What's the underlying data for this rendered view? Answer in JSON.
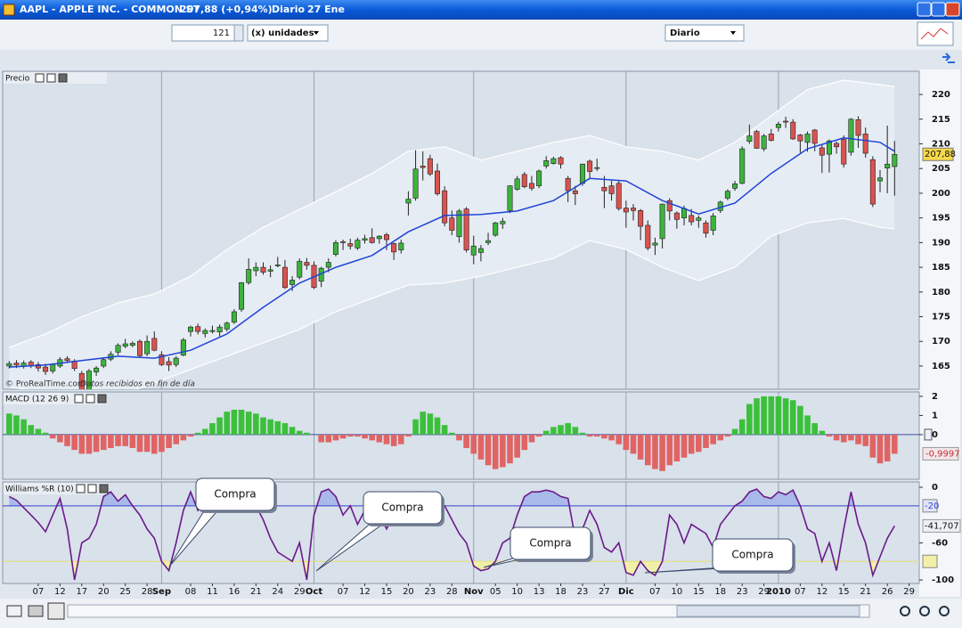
{
  "window": {
    "title": "AAPL - APPLE INC. - COMMON ST",
    "quote": "207,88 (+0,94%)",
    "period": "Diario",
    "date": "27 Ene"
  },
  "toolbar": {
    "units_value": "121",
    "units_mode": "(x) unidades",
    "timeframe": "Diario"
  },
  "chart_data": [
    {
      "type": "candlestick",
      "title": "Precio",
      "watermark": "© ProRealTime.com",
      "note": "Datos recibidos en fin de día",
      "xlim": [
        -0.9,
        125.4
      ],
      "ylim": [
        160.3,
        224.7
      ],
      "yticks": [
        165,
        170,
        175,
        180,
        185,
        190,
        195,
        200,
        205,
        210,
        215,
        220
      ],
      "up_color": "#3cb43c",
      "down_color": "#d9534f",
      "open": [
        165.0,
        165.6,
        165.0,
        165.8,
        165.3,
        164.8,
        164.0,
        165.0,
        166.5,
        166.0,
        163.5,
        159.9,
        163.8,
        165.0,
        166.4,
        167.8,
        169.0,
        169.2,
        170.0,
        167.5,
        170.6,
        167.3,
        165.9,
        165.3,
        167.2,
        172.0,
        173.0,
        171.6,
        172.0,
        171.9,
        172.5,
        173.9,
        176.5,
        181.9,
        184.3,
        185.0,
        184.2,
        185.4,
        185.0,
        181.5,
        183.0,
        186.0,
        185.4,
        182.2,
        185.0,
        187.6,
        190.2,
        189.8,
        188.9,
        190.5,
        191.0,
        190.8,
        191.6,
        189.8,
        188.5,
        198.0,
        199.0,
        205.5,
        207.0,
        204.5,
        200.5,
        195.0,
        191.2,
        196.8,
        187.5,
        188.0,
        190.0,
        191.5,
        193.8,
        196.5,
        200.8,
        203.8,
        202.0,
        201.5,
        205.5,
        206.0,
        207.2,
        203.0,
        200.5,
        202.0,
        206.5,
        205.0,
        201.2,
        201.5,
        202.0,
        197.0,
        197.0,
        196.5,
        193.5,
        189.5,
        190.8,
        198.5,
        196.0,
        195.0,
        195.5,
        194.5,
        194.0,
        192.5,
        196.5,
        199.0,
        201.0,
        202.0,
        210.5,
        212.5,
        209.0,
        212.0,
        213.3,
        214.6,
        214.4,
        211.8,
        210.3,
        212.8,
        209.2,
        207.9,
        210.1,
        210.9,
        208.3,
        214.9,
        212.0,
        206.8,
        202.5,
        205.1,
        205.4
      ],
      "high": [
        166.0,
        166.2,
        166.1,
        166.2,
        165.8,
        165.5,
        165.6,
        166.8,
        167.0,
        166.4,
        164.0,
        164.4,
        165.0,
        166.8,
        168.0,
        169.6,
        170.5,
        170.0,
        170.4,
        171.2,
        172.0,
        168.0,
        166.8,
        167.0,
        170.7,
        173.2,
        173.6,
        172.6,
        173.2,
        173.4,
        174.0,
        176.5,
        182.0,
        186.8,
        186.0,
        186.0,
        185.4,
        187.1,
        186.5,
        183.2,
        186.8,
        186.9,
        186.2,
        185.1,
        186.8,
        190.5,
        190.6,
        190.8,
        191.0,
        191.6,
        192.9,
        191.5,
        192.0,
        190.0,
        190.6,
        200.4,
        208.7,
        208.5,
        207.8,
        206.0,
        201.4,
        196.5,
        196.8,
        197.2,
        191.4,
        189.5,
        192.0,
        194.2,
        195.0,
        201.6,
        203.5,
        204.3,
        203.5,
        204.8,
        207.5,
        207.4,
        207.5,
        203.5,
        201.5,
        206.0,
        206.8,
        207.0,
        203.5,
        202.5,
        202.5,
        198.5,
        197.8,
        196.8,
        194.5,
        191.0,
        197.9,
        199.0,
        196.3,
        197.5,
        196.8,
        195.5,
        194.5,
        196.0,
        198.5,
        200.8,
        202.5,
        209.5,
        213.9,
        212.8,
        212.0,
        213.0,
        214.5,
        215.5,
        215.0,
        212.0,
        212.5,
        213.0,
        210.0,
        210.9,
        210.5,
        211.7,
        215.2,
        215.6,
        213.3,
        207.5,
        204.7,
        213.7,
        210.6
      ],
      "low": [
        164.5,
        164.6,
        164.5,
        164.6,
        163.9,
        163.2,
        163.5,
        164.6,
        165.6,
        164.0,
        159.4,
        159.7,
        163.0,
        164.6,
        166.0,
        167.2,
        168.6,
        168.8,
        166.8,
        167.0,
        168.0,
        165.0,
        164.0,
        164.8,
        167.0,
        171.0,
        171.4,
        170.8,
        171.6,
        171.0,
        172.0,
        173.5,
        176.0,
        181.5,
        183.2,
        183.5,
        183.0,
        185.0,
        180.6,
        180.2,
        182.6,
        184.5,
        180.6,
        181.0,
        184.0,
        187.2,
        188.5,
        188.6,
        188.5,
        189.8,
        189.8,
        189.8,
        188.5,
        186.5,
        187.8,
        195.5,
        198.5,
        202.6,
        203.5,
        199.5,
        193.3,
        191.5,
        190.0,
        188.0,
        185.6,
        186.2,
        189.5,
        191.2,
        192.8,
        196.0,
        200.5,
        201.0,
        200.5,
        201.0,
        205.0,
        205.8,
        205.0,
        198.2,
        197.6,
        201.5,
        202.8,
        204.5,
        197.0,
        198.5,
        196.5,
        193.0,
        194.5,
        190.5,
        188.4,
        187.5,
        188.8,
        194.5,
        192.8,
        193.5,
        193.5,
        193.0,
        191.0,
        191.5,
        196.0,
        198.6,
        200.5,
        201.8,
        210.0,
        209.0,
        208.5,
        210.5,
        212.5,
        213.2,
        210.8,
        208.2,
        208.4,
        208.5,
        204.1,
        204.2,
        208.0,
        205.2,
        207.6,
        209.2,
        207.2,
        197.2,
        200.2,
        200.0,
        199.5
      ],
      "close": [
        165.5,
        165.2,
        165.6,
        165.1,
        164.6,
        163.9,
        165.3,
        166.3,
        166.1,
        164.5,
        159.6,
        164.0,
        164.6,
        166.3,
        167.4,
        169.2,
        169.5,
        169.6,
        167.1,
        170.0,
        168.2,
        165.3,
        165.2,
        166.6,
        170.3,
        172.9,
        172.0,
        172.2,
        172.2,
        172.9,
        173.7,
        176.0,
        181.9,
        184.6,
        185.0,
        184.0,
        184.5,
        185.5,
        180.9,
        182.4,
        186.2,
        185.4,
        180.9,
        184.8,
        186.0,
        190.0,
        190.0,
        189.3,
        190.5,
        190.8,
        190.0,
        191.3,
        190.6,
        188.1,
        189.9,
        198.8,
        204.9,
        205.2,
        203.9,
        199.9,
        194.0,
        192.5,
        196.4,
        188.5,
        189.3,
        188.8,
        190.4,
        194.0,
        194.3,
        201.5,
        202.9,
        201.3,
        201.0,
        204.5,
        206.6,
        207.0,
        205.9,
        200.5,
        199.9,
        205.9,
        204.4,
        205.2,
        200.5,
        199.9,
        196.9,
        196.2,
        196.5,
        193.3,
        188.9,
        189.9,
        197.8,
        196.4,
        194.7,
        196.9,
        194.2,
        195.0,
        191.9,
        195.4,
        198.2,
        200.4,
        201.9,
        209.0,
        211.6,
        209.1,
        211.6,
        210.7,
        214.0,
        214.4,
        211.0,
        210.6,
        212.0,
        210.1,
        207.7,
        210.6,
        209.4,
        205.9,
        215.0,
        211.7,
        208.1,
        197.8,
        203.1,
        205.9,
        207.88
      ],
      "last_price": {
        "value": 207.88,
        "label": "207,88"
      },
      "average": {
        "color": "#1f44d8",
        "x": [
          0,
          5,
          10,
          15,
          20,
          25,
          30,
          35,
          40,
          45,
          50,
          55,
          60,
          65,
          70,
          75,
          80,
          85,
          90,
          95,
          100,
          105,
          110,
          115,
          120,
          122
        ],
        "values": [
          164.8,
          165.2,
          166.1,
          167,
          166.6,
          168.2,
          171.5,
          176.9,
          181.8,
          185,
          187.4,
          192.2,
          195.5,
          195.7,
          196.4,
          198.5,
          203,
          202.5,
          198.5,
          195.8,
          198,
          204,
          209,
          211.2,
          210.3,
          208.5
        ]
      },
      "bands": {
        "color": "#ffffff",
        "fill": "#e6ecf3",
        "x": [
          0,
          5,
          10,
          15,
          20,
          25,
          30,
          35,
          40,
          45,
          50,
          55,
          60,
          65,
          70,
          75,
          80,
          85,
          90,
          95,
          100,
          105,
          110,
          115,
          120,
          122
        ],
        "upper": [
          168.8,
          171.5,
          175,
          177.8,
          179.6,
          183.2,
          188.6,
          193.1,
          196.7,
          200.3,
          204,
          208.5,
          209.4,
          206.7,
          208.5,
          210.3,
          211.7,
          209.4,
          208.5,
          206.7,
          210.3,
          215.7,
          221,
          222.9,
          222,
          221.6
        ],
        "lower": [
          160.7,
          159.8,
          158,
          158.9,
          161.6,
          164.3,
          167,
          169.7,
          172.4,
          176,
          178.7,
          181.4,
          181.8,
          183.2,
          185,
          186.8,
          190.4,
          188.6,
          185,
          182.3,
          185,
          191.3,
          194,
          194.9,
          193.1,
          192.8
        ]
      }
    },
    {
      "type": "bar",
      "title": "MACD (12 26 9)",
      "xlim": [
        -0.9,
        125.4
      ],
      "ylim": [
        -2.33,
        2.23
      ],
      "yticks": [
        0,
        1,
        2
      ],
      "positive_color": "#3cc03c",
      "negative_color": "#e06464",
      "values": [
        1.1,
        1.0,
        0.8,
        0.5,
        0.3,
        0.1,
        -0.2,
        -0.4,
        -0.6,
        -0.8,
        -1.0,
        -1.0,
        -0.9,
        -0.8,
        -0.7,
        -0.6,
        -0.6,
        -0.7,
        -0.9,
        -0.9,
        -1.0,
        -0.9,
        -0.7,
        -0.5,
        -0.3,
        -0.1,
        0.1,
        0.3,
        0.6,
        0.9,
        1.2,
        1.3,
        1.3,
        1.2,
        1.1,
        0.9,
        0.8,
        0.7,
        0.6,
        0.4,
        0.2,
        0.1,
        0.0,
        -0.4,
        -0.4,
        -0.3,
        -0.2,
        -0.1,
        -0.1,
        -0.2,
        -0.3,
        -0.4,
        -0.5,
        -0.6,
        -0.5,
        -0.1,
        0.8,
        1.2,
        1.1,
        0.9,
        0.5,
        0.1,
        -0.3,
        -0.7,
        -1.0,
        -1.3,
        -1.6,
        -1.8,
        -1.7,
        -1.5,
        -1.2,
        -0.8,
        -0.4,
        -0.1,
        0.2,
        0.4,
        0.5,
        0.6,
        0.4,
        0.1,
        -0.1,
        -0.1,
        -0.2,
        -0.3,
        -0.5,
        -0.8,
        -1.0,
        -1.3,
        -1.6,
        -1.8,
        -1.9,
        -1.6,
        -1.4,
        -1.2,
        -1.0,
        -0.9,
        -0.7,
        -0.5,
        -0.3,
        -0.1,
        0.3,
        0.8,
        1.6,
        1.9,
        2.0,
        2.0,
        2.0,
        1.9,
        1.8,
        1.5,
        1.0,
        0.6,
        0.2,
        -0.1,
        -0.3,
        -0.4,
        -0.3,
        -0.5,
        -0.6,
        -1.2,
        -1.5,
        -1.4,
        -0.9997
      ],
      "last_value": {
        "value": -0.9997,
        "label": "-0,9997"
      }
    },
    {
      "type": "line",
      "title": "Williams %R (10)",
      "xlim": [
        -0.9,
        125.4
      ],
      "ylim": [
        -103.8,
        5.8
      ],
      "yticks": [
        0,
        -60,
        -100
      ],
      "color": "#6a1b8a",
      "values": [
        -10,
        -14,
        -22,
        -30,
        -38,
        -48,
        -30,
        -12,
        -45,
        -100,
        -60,
        -55,
        -40,
        -10,
        -5,
        -15,
        -8,
        -20,
        -30,
        -45,
        -55,
        -80,
        -90,
        -60,
        -25,
        -5,
        -25,
        -15,
        -30,
        -5,
        -10,
        -2,
        -3,
        -10,
        -20,
        -35,
        -55,
        -70,
        -75,
        -80,
        -60,
        -100,
        -30,
        -5,
        -2,
        -10,
        -30,
        -20,
        -40,
        -25,
        -15,
        -30,
        -45,
        -30,
        -20,
        -40,
        -10,
        -5,
        -8,
        -12,
        -20,
        -35,
        -50,
        -60,
        -85,
        -90,
        -88,
        -80,
        -60,
        -55,
        -30,
        -10,
        -5,
        -5,
        -3,
        -5,
        -10,
        -12,
        -55,
        -45,
        -25,
        -40,
        -65,
        -70,
        -60,
        -92,
        -95,
        -80,
        -90,
        -95,
        -80,
        -30,
        -40,
        -60,
        -40,
        -45,
        -50,
        -65,
        -40,
        -30,
        -20,
        -15,
        -5,
        -2,
        -10,
        -12,
        -5,
        -8,
        -3,
        -20,
        -45,
        -50,
        -80,
        -60,
        -90,
        -45,
        -5,
        -40,
        -60,
        -95,
        -75,
        -55,
        -41.707
      ],
      "last_value": {
        "value": -41.707,
        "label": "-41,707"
      },
      "levels": [
        {
          "value": -20,
          "label": "-20",
          "color": "#3344cc",
          "fill": "#a9b9ea"
        },
        {
          "value": -80,
          "color": "#e6e070",
          "fill": "#f2f0a8"
        }
      ],
      "annotations": [
        "Compra",
        "Compra",
        "Compra",
        "Compra"
      ],
      "xticks": [
        {
          "value": 4,
          "label": "07"
        },
        {
          "value": 7,
          "label": "12"
        },
        {
          "value": 10,
          "label": "17"
        },
        {
          "value": 13,
          "label": "20"
        },
        {
          "value": 16,
          "label": "25"
        },
        {
          "value": 19,
          "label": "28"
        },
        {
          "value": 25,
          "label": "08"
        },
        {
          "value": 28,
          "label": "11"
        },
        {
          "value": 31,
          "label": "16"
        },
        {
          "value": 34,
          "label": "21"
        },
        {
          "value": 37,
          "label": "24"
        },
        {
          "value": 40,
          "label": "29"
        },
        {
          "value": 46,
          "label": "07"
        },
        {
          "value": 49,
          "label": "12"
        },
        {
          "value": 52,
          "label": "15"
        },
        {
          "value": 55,
          "label": "20"
        },
        {
          "value": 58,
          "label": "23"
        },
        {
          "value": 61,
          "label": "28"
        },
        {
          "value": 67,
          "label": "05"
        },
        {
          "value": 70,
          "label": "10"
        },
        {
          "value": 73,
          "label": "13"
        },
        {
          "value": 76,
          "label": "18"
        },
        {
          "value": 79,
          "label": "23"
        },
        {
          "value": 82,
          "label": "27"
        },
        {
          "value": 89,
          "label": "07"
        },
        {
          "value": 92,
          "label": "10"
        },
        {
          "value": 95,
          "label": "15"
        },
        {
          "value": 98,
          "label": "18"
        },
        {
          "value": 101,
          "label": "23"
        },
        {
          "value": 104,
          "label": "29"
        },
        {
          "value": 109,
          "label": "07"
        },
        {
          "value": 112,
          "label": "12"
        },
        {
          "value": 115,
          "label": "15"
        },
        {
          "value": 118,
          "label": "21"
        },
        {
          "value": 121,
          "label": "26"
        },
        {
          "value": 124,
          "label": "29"
        }
      ],
      "xticks_major": [
        {
          "value": 21,
          "label": "Sep"
        },
        {
          "value": 42,
          "label": "Oct"
        },
        {
          "value": 64,
          "label": "Nov"
        },
        {
          "value": 85,
          "label": "Dic"
        },
        {
          "value": 106,
          "label": "2010"
        }
      ]
    }
  ]
}
